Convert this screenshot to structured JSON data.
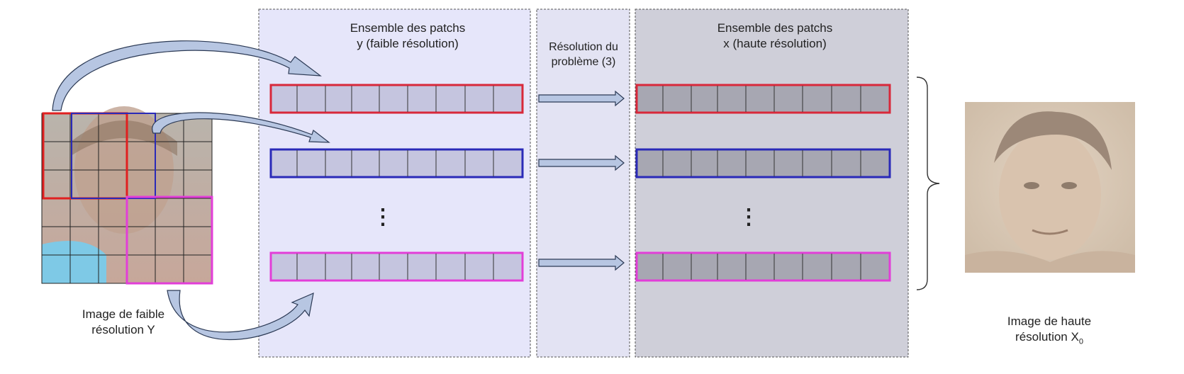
{
  "panels": {
    "low_res_patches": {
      "title_line1": "Ensemble des patchs",
      "title_line2": "y (faible résolution)",
      "color": "#e6e6fa"
    },
    "solver": {
      "title_line1": "Résolution du",
      "title_line2": "problème (3)",
      "color": "#e3e3f3"
    },
    "high_res_patches": {
      "title_line1": "Ensemble des patchs",
      "title_line2": "x (haute résolution)",
      "color": "#cfcfd9"
    }
  },
  "left_image": {
    "caption_line1": "Image de faible",
    "caption_line2": "résolution Y",
    "grid": "6x6"
  },
  "right_image": {
    "caption_line1": "Image de haute",
    "caption_line2": "résolution X",
    "caption_subscript": "0"
  },
  "patch_rows": [
    {
      "row": "red",
      "color": "#d8283a"
    },
    {
      "row": "blue",
      "color": "#2a2ab8"
    },
    {
      "row": "magenta",
      "color": "#e23ed8"
    }
  ],
  "ellipsis": "⋮",
  "colors": {
    "low_res_cell": "#c5c5df",
    "high_res_cell": "#a7a7b2",
    "arrow_fill": "#b7c6e2",
    "arrow_stroke": "#2c3a55"
  }
}
